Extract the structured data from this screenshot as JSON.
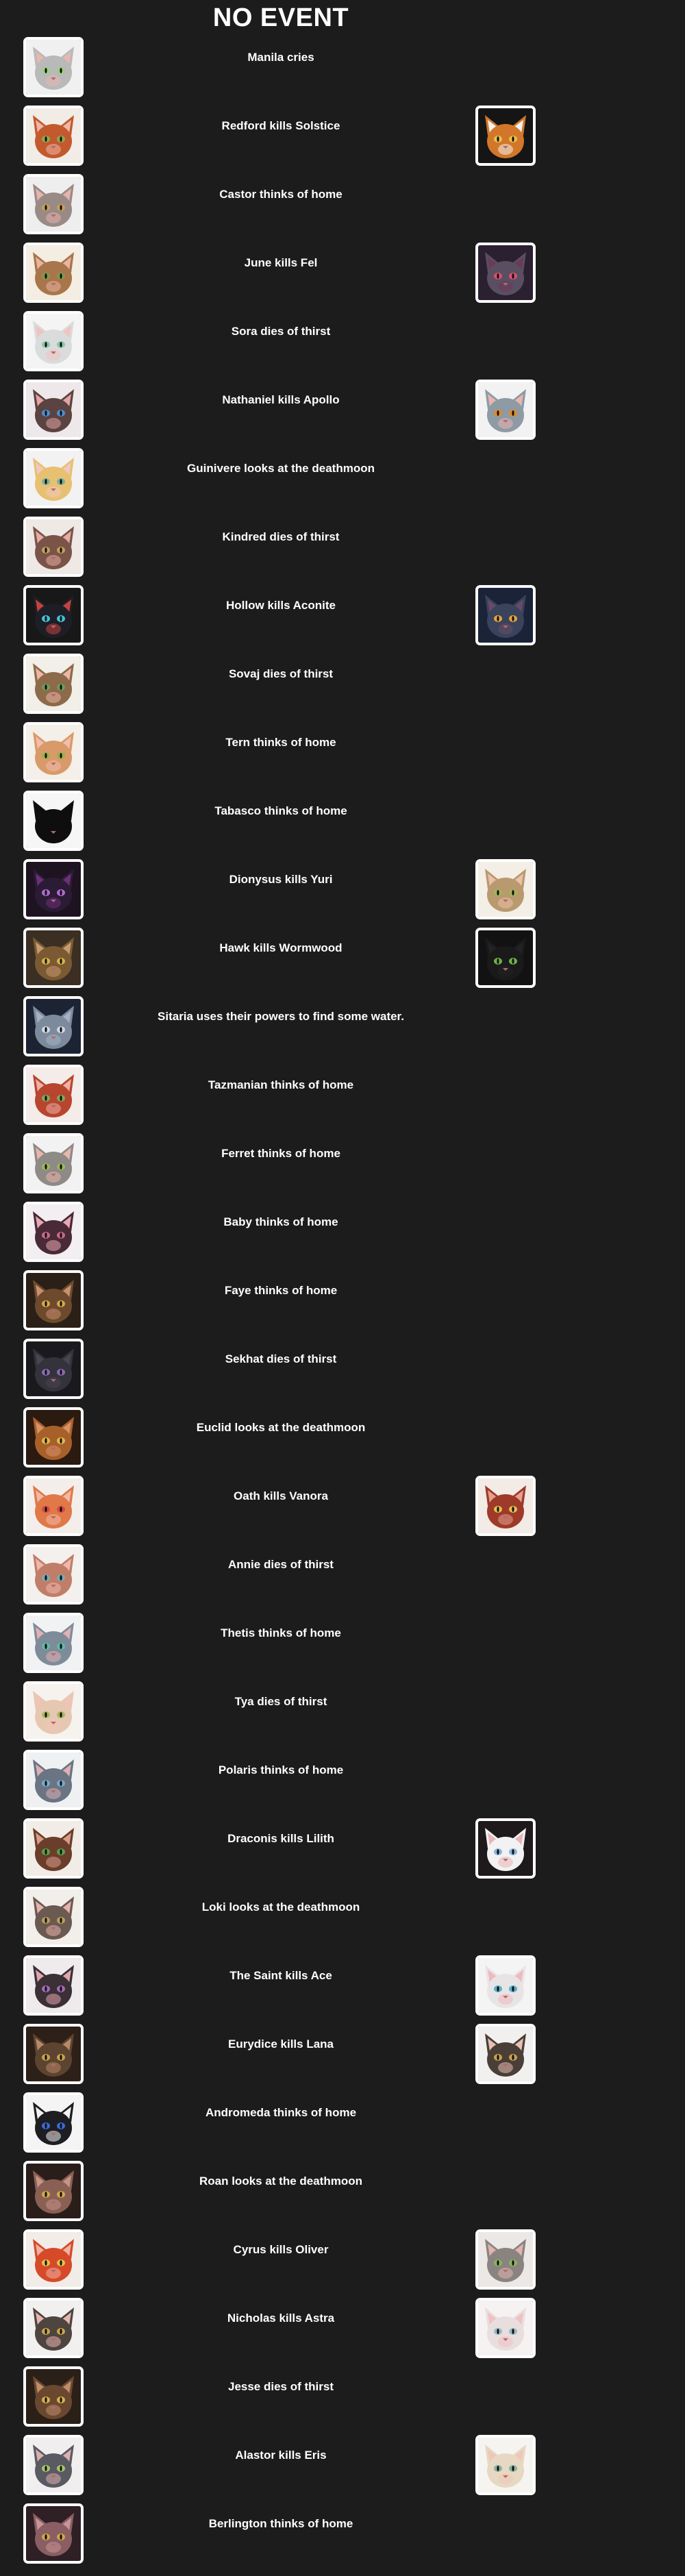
{
  "header": {
    "title": "NO EVENT"
  },
  "events": [
    {
      "text": "Manila cries",
      "actor": {
        "name": "Manila",
        "icon": "cat-portrait-icon",
        "bg": "#f0f0f0",
        "fur": "#b9b9b9",
        "ear": "#e8b7b0",
        "eye": "#9ccf7a"
      },
      "victim": null
    },
    {
      "text": "Redford kills Solstice",
      "actor": {
        "name": "Redford",
        "icon": "cat-portrait-icon",
        "bg": "#f2ece6",
        "fur": "#c25a2e",
        "ear": "#f0b6a8",
        "eye": "#8fa84a"
      },
      "victim": {
        "name": "Solstice",
        "icon": "cat-portrait-icon",
        "bg": "#151515",
        "fur": "#d2772a",
        "ear": "#f2f2f2",
        "eye": "#e8c14a"
      }
    },
    {
      "text": "Castor thinks of home",
      "actor": {
        "name": "Castor",
        "icon": "cat-portrait-icon",
        "bg": "#eeeeee",
        "fur": "#9a8a86",
        "ear": "#e6b3ad",
        "eye": "#c79f57"
      },
      "victim": null
    },
    {
      "text": "June kills Fel",
      "actor": {
        "name": "June",
        "icon": "cat-portrait-icon",
        "bg": "#f3ede2",
        "fur": "#a8764a",
        "ear": "#eab3a3",
        "eye": "#7d9a4d"
      },
      "victim": {
        "name": "Fel",
        "icon": "cat-portrait-icon",
        "bg": "#2a2030",
        "fur": "#5a4e62",
        "ear": "#6b3a56",
        "eye": "#d94f6a"
      }
    },
    {
      "text": "Sora dies of thirst",
      "actor": {
        "name": "Sora",
        "icon": "cat-portrait-icon",
        "bg": "#f4f4f4",
        "fur": "#d9dbdd",
        "ear": "#f0c3bd",
        "eye": "#8ec6a8"
      },
      "victim": null
    },
    {
      "text": "Nathaniel kills Apollo",
      "actor": {
        "name": "Nathaniel",
        "icon": "cat-portrait-icon",
        "bg": "#efe8ea",
        "fur": "#5a4340",
        "ear": "#e3a4a6",
        "eye": "#4c8fd0"
      },
      "victim": {
        "name": "Apollo",
        "icon": "cat-portrait-icon",
        "bg": "#f2f2f2",
        "fur": "#8e9aa4",
        "ear": "#e9b5b0",
        "eye": "#e08a2a"
      }
    },
    {
      "text": "Guinivere looks at the deathmoon",
      "actor": {
        "name": "Guinivere",
        "icon": "cat-portrait-icon",
        "bg": "#f2f2f2",
        "fur": "#e8c072",
        "ear": "#f0c8c0",
        "eye": "#7ab0a0"
      },
      "victim": null
    },
    {
      "text": "Kindred dies of thirst",
      "actor": {
        "name": "Kindred",
        "icon": "cat-portrait-icon",
        "bg": "#efe9e6",
        "fur": "#7a5448",
        "ear": "#e6aca4",
        "eye": "#c2a05a"
      },
      "victim": null
    },
    {
      "text": "Hollow kills Aconite",
      "actor": {
        "name": "Hollow",
        "icon": "cat-portrait-icon",
        "bg": "#181818",
        "fur": "#1e1e26",
        "ear": "#c4423e",
        "eye": "#43c2d6"
      },
      "victim": {
        "name": "Aconite",
        "icon": "cat-portrait-icon",
        "bg": "#1b2338",
        "fur": "#39435c",
        "ear": "#6a4a68",
        "eye": "#e6a23c"
      }
    },
    {
      "text": "Sovaj dies of thirst",
      "actor": {
        "name": "Sovaj",
        "icon": "cat-portrait-icon",
        "bg": "#f2eee8",
        "fur": "#8c6a4a",
        "ear": "#ecb6a8",
        "eye": "#6f9c5a"
      },
      "victim": null
    },
    {
      "text": "Tern thinks of home",
      "actor": {
        "name": "Tern",
        "icon": "cat-portrait-icon",
        "bg": "#f4efe8",
        "fur": "#d89a68",
        "ear": "#f2bcae",
        "eye": "#9ab050"
      },
      "victim": null
    },
    {
      "text": "Tabasco thinks of home",
      "actor": {
        "name": "Tabasco",
        "icon": "cat-portrait-icon",
        "bg": "#f6f6f6",
        "fur": "#0e0e0e",
        "ear": "#0e0e0e",
        "eye": "#0e0e0e"
      },
      "victim": null
    },
    {
      "text": "Dionysus kills Yuri",
      "actor": {
        "name": "Dionysus",
        "icon": "cat-portrait-icon",
        "bg": "#1e1320",
        "fur": "#2c1b34",
        "ear": "#6e2f7a",
        "eye": "#b06ad0"
      },
      "victim": {
        "name": "Yuri",
        "icon": "cat-portrait-icon",
        "bg": "#f3efe7",
        "fur": "#b89a6e",
        "ear": "#ecc0aa",
        "eye": "#a2b45a"
      }
    },
    {
      "text": "Hawk kills Wormwood",
      "actor": {
        "name": "Hawk",
        "icon": "cat-portrait-icon",
        "bg": "#3a2f22",
        "fur": "#7a5a32",
        "ear": "#c89a70",
        "eye": "#d6b248"
      },
      "victim": {
        "name": "Wormwood",
        "icon": "cat-portrait-icon",
        "bg": "#121212",
        "fur": "#1a1a1a",
        "ear": "#232323",
        "eye": "#6fb04a"
      }
    },
    {
      "text": "Sitaria uses their powers to find some water.",
      "actor": {
        "name": "Sitaria",
        "icon": "cat-portrait-icon",
        "bg": "#1c2434",
        "fur": "#7d8a9c",
        "ear": "#a5b2c4",
        "eye": "#cfd8e4"
      },
      "victim": null
    },
    {
      "text": "Tazmanian thinks of home",
      "actor": {
        "name": "Tazmanian",
        "icon": "cat-portrait-icon",
        "bg": "#f3ece8",
        "fur": "#b8452e",
        "ear": "#f0b0a6",
        "eye": "#7fa85a"
      },
      "victim": null
    },
    {
      "text": "Ferret thinks of home",
      "actor": {
        "name": "Ferret",
        "icon": "cat-portrait-icon",
        "bg": "#f2f2f2",
        "fur": "#8e8a86",
        "ear": "#e8b6ae",
        "eye": "#9cb65a"
      },
      "victim": null
    },
    {
      "text": "Baby thinks of home",
      "actor": {
        "name": "Baby",
        "icon": "cat-portrait-icon",
        "bg": "#f2eef2",
        "fur": "#4a2a36",
        "ear": "#e6a8b4",
        "eye": "#c46a8a"
      },
      "victim": null
    },
    {
      "text": "Faye thinks of home",
      "actor": {
        "name": "Faye",
        "icon": "cat-portrait-icon",
        "bg": "#2a2018",
        "fur": "#6e4a2c",
        "ear": "#c89070",
        "eye": "#d6a84a"
      },
      "victim": null
    },
    {
      "text": "Sekhat dies of thirst",
      "actor": {
        "name": "Sekhat",
        "icon": "cat-portrait-icon",
        "bg": "#1a1a1e",
        "fur": "#34323a",
        "ear": "#4a4650",
        "eye": "#8a6ab0"
      },
      "victim": null
    },
    {
      "text": "Euclid looks at the deathmoon",
      "actor": {
        "name": "Euclid",
        "icon": "cat-portrait-icon",
        "bg": "#2a1a10",
        "fur": "#a8602a",
        "ear": "#d8926a",
        "eye": "#e0b84a"
      },
      "victim": null
    },
    {
      "text": "Oath kills Vanora",
      "actor": {
        "name": "Oath",
        "icon": "cat-portrait-icon",
        "bg": "#f4eeea",
        "fur": "#e07848",
        "ear": "#f2b8a6",
        "eye": "#d24a4a"
      },
      "victim": {
        "name": "Vanora",
        "icon": "cat-portrait-icon",
        "bg": "#f2ebe6",
        "fur": "#9e3a2a",
        "ear": "#e6a090",
        "eye": "#e2c04a"
      }
    },
    {
      "text": "Annie dies of thirst",
      "actor": {
        "name": "Annie",
        "icon": "cat-portrait-icon",
        "bg": "#f4f0ee",
        "fur": "#c07e68",
        "ear": "#f0b8ac",
        "eye": "#7aa8b8"
      },
      "victim": null
    },
    {
      "text": "Thetis thinks of home",
      "actor": {
        "name": "Thetis",
        "icon": "cat-portrait-icon",
        "bg": "#f0f2f4",
        "fur": "#7e8c9a",
        "ear": "#e4b0b2",
        "eye": "#5fb8a8"
      },
      "victim": null
    },
    {
      "text": "Tya dies of thirst",
      "actor": {
        "name": "Tya",
        "icon": "cat-portrait-icon",
        "bg": "#f6f2ee",
        "fur": "#e6c8b2",
        "ear": "#f2c2b6",
        "eye": "#a8b860"
      },
      "victim": null
    },
    {
      "text": "Polaris thinks of home",
      "actor": {
        "name": "Polaris",
        "icon": "cat-portrait-icon",
        "bg": "#eef0f2",
        "fur": "#6a7482",
        "ear": "#dcb0b4",
        "eye": "#78a8d0"
      },
      "victim": null
    },
    {
      "text": "Draconis kills Lilith",
      "actor": {
        "name": "Draconis",
        "icon": "cat-portrait-icon",
        "bg": "#f2ece6",
        "fur": "#6a3e2a",
        "ear": "#d89c8a",
        "eye": "#58a04a"
      },
      "victim": {
        "name": "Lilith",
        "icon": "cat-portrait-icon",
        "bg": "#1e1a1c",
        "fur": "#f2f2f2",
        "ear": "#e8b4b6",
        "eye": "#8ab4d8"
      }
    },
    {
      "text": "Loki looks at the deathmoon",
      "actor": {
        "name": "Loki",
        "icon": "cat-portrait-icon",
        "bg": "#f2eeea",
        "fur": "#6a5a52",
        "ear": "#e6b2aa",
        "eye": "#b8a05a"
      },
      "victim": null
    },
    {
      "text": "The Saint kills Ace",
      "actor": {
        "name": "The Saint",
        "icon": "cat-portrait-icon",
        "bg": "#efeaec",
        "fur": "#3a3036",
        "ear": "#e0a4ae",
        "eye": "#a46ab8"
      },
      "victim": {
        "name": "Ace",
        "icon": "cat-portrait-icon",
        "bg": "#f4f4f4",
        "fur": "#e8e4e6",
        "ear": "#f0b8c0",
        "eye": "#5ab0c8"
      }
    },
    {
      "text": "Eurydice kills Lana",
      "actor": {
        "name": "Eurydice",
        "icon": "cat-portrait-icon",
        "bg": "#2c2018",
        "fur": "#5c4430",
        "ear": "#b88868",
        "eye": "#caa04a"
      },
      "victim": {
        "name": "Lana",
        "icon": "cat-portrait-icon",
        "bg": "#f2f0ee",
        "fur": "#4a3e38",
        "ear": "#e6c0b4",
        "eye": "#c8a04a"
      }
    },
    {
      "text": "Andromeda thinks of home",
      "actor": {
        "name": "Andromeda",
        "icon": "cat-portrait-icon",
        "bg": "#f4f4f4",
        "fur": "#1e1e22",
        "ear": "#f2f2f2",
        "eye": "#3a6ad6"
      },
      "victim": null
    },
    {
      "text": "Roan looks at the deathmoon",
      "actor": {
        "name": "Roan",
        "icon": "cat-portrait-icon",
        "bg": "#2a1e1a",
        "fur": "#8a6054",
        "ear": "#c89488",
        "eye": "#d2a84a"
      },
      "victim": null
    },
    {
      "text": "Cyrus kills Oliver",
      "actor": {
        "name": "Cyrus",
        "icon": "cat-portrait-icon",
        "bg": "#f2ece8",
        "fur": "#d64a2a",
        "ear": "#f2b2a2",
        "eye": "#e2c24a"
      },
      "victim": {
        "name": "Oliver",
        "icon": "cat-portrait-icon",
        "bg": "#ece8e6",
        "fur": "#8a8480",
        "ear": "#e2b4ae",
        "eye": "#8ab45a"
      }
    },
    {
      "text": "Nicholas kills Astra",
      "actor": {
        "name": "Nicholas",
        "icon": "cat-portrait-icon",
        "bg": "#f2f0ee",
        "fur": "#4e4440",
        "ear": "#e6b6ae",
        "eye": "#c8a44a"
      },
      "victim": {
        "name": "Astra",
        "icon": "cat-portrait-icon",
        "bg": "#f6f2f2",
        "fur": "#e8dede",
        "ear": "#f0c0c2",
        "eye": "#9ab8c8"
      }
    },
    {
      "text": "Jesse dies of thirst",
      "actor": {
        "name": "Jesse",
        "icon": "cat-portrait-icon",
        "bg": "#2a2018",
        "fur": "#6a4830",
        "ear": "#c08c6a",
        "eye": "#d8b04a"
      },
      "victim": null
    },
    {
      "text": "Alastor kills Eris",
      "actor": {
        "name": "Alastor",
        "icon": "cat-portrait-icon",
        "bg": "#f0eeee",
        "fur": "#5a5a62",
        "ear": "#dcaeb0",
        "eye": "#a8c46a"
      },
      "victim": {
        "name": "Eris",
        "icon": "cat-portrait-icon",
        "bg": "#f6f4f0",
        "fur": "#e6d8c2",
        "ear": "#f0c6b8",
        "eye": "#8ab0a0"
      }
    },
    {
      "text": "Berlington thinks of home",
      "actor": {
        "name": "Berlington",
        "icon": "cat-portrait-icon",
        "bg": "#2e2024",
        "fur": "#8a5e62",
        "ear": "#c8969a",
        "eye": "#d0a64a"
      },
      "victim": null
    }
  ]
}
